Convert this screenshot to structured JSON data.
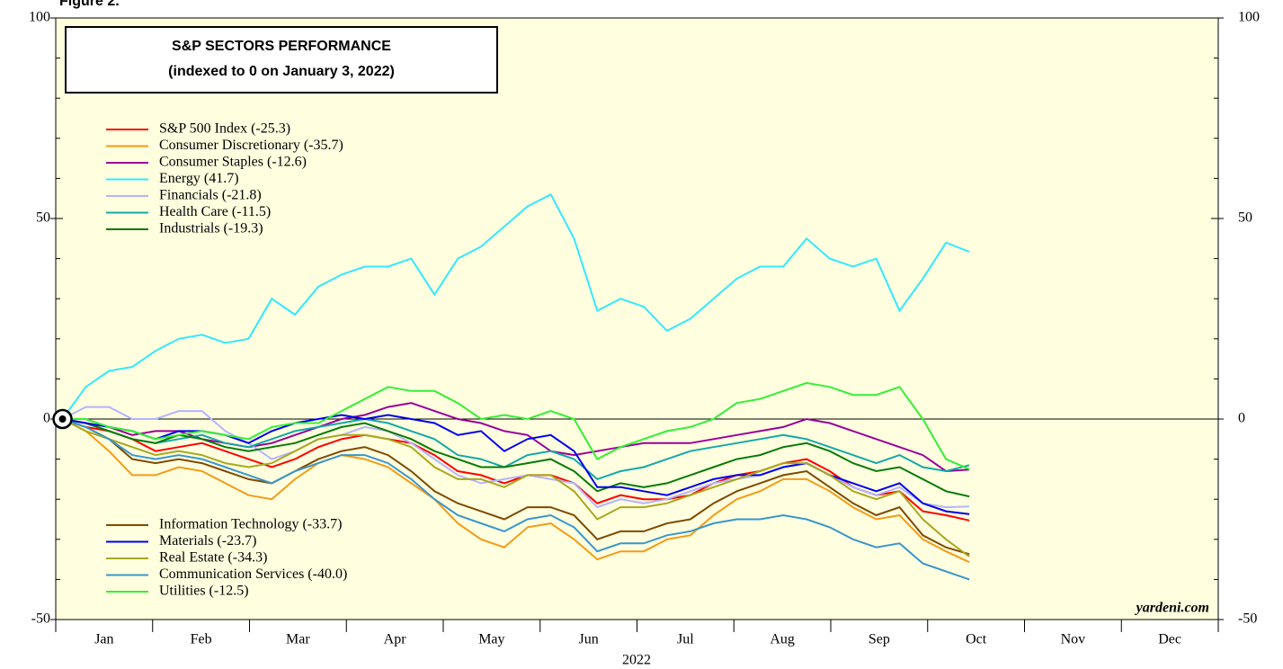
{
  "chart_data": {
    "type": "line",
    "figure_label": "Figure 2.",
    "title": "S&P SECTORS PERFORMANCE",
    "subtitle": "(indexed to 0 on January 3, 2022)",
    "xlabel": "2022",
    "source": "yardeni.com",
    "categories": [
      "Jan",
      "Feb",
      "Mar",
      "Apr",
      "May",
      "Jun",
      "Jul",
      "Aug",
      "Sep",
      "Oct",
      "Nov",
      "Dec"
    ],
    "xlim": [
      0,
      12
    ],
    "ylim": [
      -50,
      100
    ],
    "yticks": [
      -50,
      0,
      50,
      100
    ],
    "background": "#ffffe0",
    "x": [
      0.07,
      0.31,
      0.55,
      0.79,
      1.03,
      1.27,
      1.51,
      1.75,
      1.99,
      2.23,
      2.47,
      2.71,
      2.95,
      3.19,
      3.43,
      3.67,
      3.91,
      4.15,
      4.39,
      4.63,
      4.87,
      5.11,
      5.35,
      5.59,
      5.83,
      6.07,
      6.31,
      6.55,
      6.79,
      7.03,
      7.27,
      7.51,
      7.75,
      7.99,
      8.23,
      8.47,
      8.71,
      8.95,
      9.19,
      9.43
    ],
    "series": [
      {
        "name": "S&P 500 Index (-25.3)",
        "color": "#ff0000",
        "values": [
          0,
          -2,
          -3,
          -5,
          -8,
          -7,
          -6,
          -8,
          -10,
          -12,
          -10,
          -7,
          -5,
          -4,
          -5,
          -6,
          -9,
          -13,
          -14,
          -16,
          -14,
          -14,
          -16,
          -21,
          -19,
          -20,
          -20,
          -19,
          -16,
          -14,
          -13,
          -11,
          -10,
          -13,
          -17,
          -19,
          -18,
          -23,
          -24,
          -25.3
        ]
      },
      {
        "name": "Consumer Discretionary (-35.7)",
        "color": "#f59a16",
        "values": [
          0,
          -3,
          -8,
          -14,
          -14,
          -12,
          -13,
          -16,
          -19,
          -20,
          -15,
          -11,
          -9,
          -10,
          -12,
          -16,
          -20,
          -26,
          -30,
          -32,
          -27,
          -26,
          -30,
          -35,
          -33,
          -33,
          -30,
          -29,
          -24,
          -20,
          -18,
          -15,
          -15,
          -18,
          -22,
          -25,
          -24,
          -30,
          -33,
          -35.7
        ]
      },
      {
        "name": "Consumer Staples (-12.6)",
        "color": "#990099",
        "values": [
          0,
          0,
          -2,
          -4,
          -3,
          -3,
          -5,
          -6,
          -7,
          -6,
          -4,
          -2,
          0,
          1,
          3,
          4,
          2,
          0,
          -1,
          -3,
          -4,
          -8,
          -9,
          -8,
          -7,
          -6,
          -6,
          -6,
          -5,
          -4,
          -3,
          -2,
          0,
          -1,
          -3,
          -5,
          -7,
          -9,
          -13,
          -12.6
        ]
      },
      {
        "name": "Energy (41.7)",
        "color": "#33e8ff",
        "values": [
          0,
          8,
          12,
          13,
          17,
          20,
          21,
          19,
          20,
          30,
          26,
          33,
          36,
          38,
          38,
          40,
          31,
          40,
          43,
          48,
          53,
          56,
          45,
          27,
          30,
          28,
          22,
          25,
          30,
          35,
          38,
          38,
          45,
          40,
          38,
          40,
          27,
          35,
          44,
          41.7
        ]
      },
      {
        "name": "Financials (-21.8)",
        "color": "#b4b4ff",
        "values": [
          0,
          3,
          3,
          0,
          0,
          2,
          2,
          -3,
          -6,
          -10,
          -8,
          -5,
          -4,
          -2,
          -3,
          -6,
          -10,
          -14,
          -16,
          -15,
          -14,
          -15,
          -16,
          -22,
          -20,
          -21,
          -20,
          -18,
          -16,
          -15,
          -14,
          -12,
          -11,
          -14,
          -17,
          -19,
          -17,
          -21,
          -22,
          -21.8
        ]
      },
      {
        "name": "Health Care (-11.5)",
        "color": "#14a8a8",
        "values": [
          0,
          -1,
          -3,
          -5,
          -6,
          -5,
          -4,
          -6,
          -7,
          -5,
          -3,
          -2,
          -1,
          0,
          -1,
          -3,
          -5,
          -9,
          -10,
          -12,
          -9,
          -8,
          -10,
          -15,
          -13,
          -12,
          -10,
          -8,
          -7,
          -6,
          -5,
          -4,
          -5,
          -7,
          -9,
          -11,
          -9,
          -12,
          -13,
          -11.5
        ]
      },
      {
        "name": "Industrials (-19.3)",
        "color": "#087a08",
        "values": [
          0,
          -1,
          -3,
          -5,
          -6,
          -4,
          -5,
          -7,
          -8,
          -7,
          -6,
          -4,
          -2,
          -1,
          -3,
          -5,
          -8,
          -10,
          -12,
          -12,
          -11,
          -10,
          -13,
          -18,
          -16,
          -17,
          -16,
          -14,
          -12,
          -10,
          -9,
          -7,
          -6,
          -8,
          -11,
          -13,
          -12,
          -15,
          -18,
          -19.3
        ]
      },
      {
        "name": "Information Technology (-33.7)",
        "color": "#7f4a00",
        "values": [
          0,
          -2,
          -5,
          -10,
          -11,
          -10,
          -11,
          -13,
          -15,
          -16,
          -13,
          -10,
          -8,
          -7,
          -9,
          -13,
          -18,
          -21,
          -23,
          -25,
          -22,
          -22,
          -24,
          -30,
          -28,
          -28,
          -26,
          -25,
          -21,
          -18,
          -16,
          -14,
          -13,
          -17,
          -21,
          -24,
          -22,
          -29,
          -32,
          -33.7
        ]
      },
      {
        "name": "Materials (-23.7)",
        "color": "#0000ee",
        "values": [
          0,
          -1,
          -2,
          -3,
          -5,
          -3,
          -3,
          -4,
          -6,
          -3,
          -1,
          0,
          1,
          0,
          1,
          0,
          -1,
          -4,
          -3,
          -8,
          -5,
          -4,
          -8,
          -17,
          -17,
          -18,
          -19,
          -17,
          -15,
          -14,
          -14,
          -12,
          -11,
          -14,
          -16,
          -18,
          -16,
          -21,
          -23,
          -23.7
        ]
      },
      {
        "name": "Real Estate (-34.3)",
        "color": "#a8a820",
        "values": [
          0,
          -3,
          -5,
          -7,
          -9,
          -8,
          -9,
          -11,
          -12,
          -11,
          -8,
          -5,
          -4,
          -4,
          -5,
          -7,
          -12,
          -15,
          -15,
          -17,
          -14,
          -14,
          -18,
          -25,
          -22,
          -22,
          -21,
          -19,
          -17,
          -15,
          -13,
          -11,
          -11,
          -14,
          -18,
          -20,
          -18,
          -25,
          -30,
          -34.3
        ]
      },
      {
        "name": "Communication Services (-40.0)",
        "color": "#3a96cc",
        "values": [
          0,
          -2,
          -5,
          -9,
          -10,
          -9,
          -10,
          -12,
          -14,
          -16,
          -13,
          -11,
          -9,
          -9,
          -11,
          -15,
          -20,
          -24,
          -26,
          -28,
          -25,
          -24,
          -27,
          -33,
          -31,
          -31,
          -29,
          -28,
          -26,
          -25,
          -25,
          -24,
          -25,
          -27,
          -30,
          -32,
          -31,
          -36,
          -38,
          -40
        ]
      },
      {
        "name": "Utilities (-12.5)",
        "color": "#33f033",
        "values": [
          0,
          0,
          -2,
          -3,
          -5,
          -4,
          -3,
          -4,
          -5,
          -2,
          -1,
          -1,
          2,
          5,
          8,
          7,
          7,
          4,
          0,
          1,
          0,
          2,
          0,
          -10,
          -7,
          -5,
          -3,
          -2,
          0,
          4,
          5,
          7,
          9,
          8,
          6,
          6,
          8,
          0,
          -10,
          -12.5
        ]
      }
    ]
  }
}
